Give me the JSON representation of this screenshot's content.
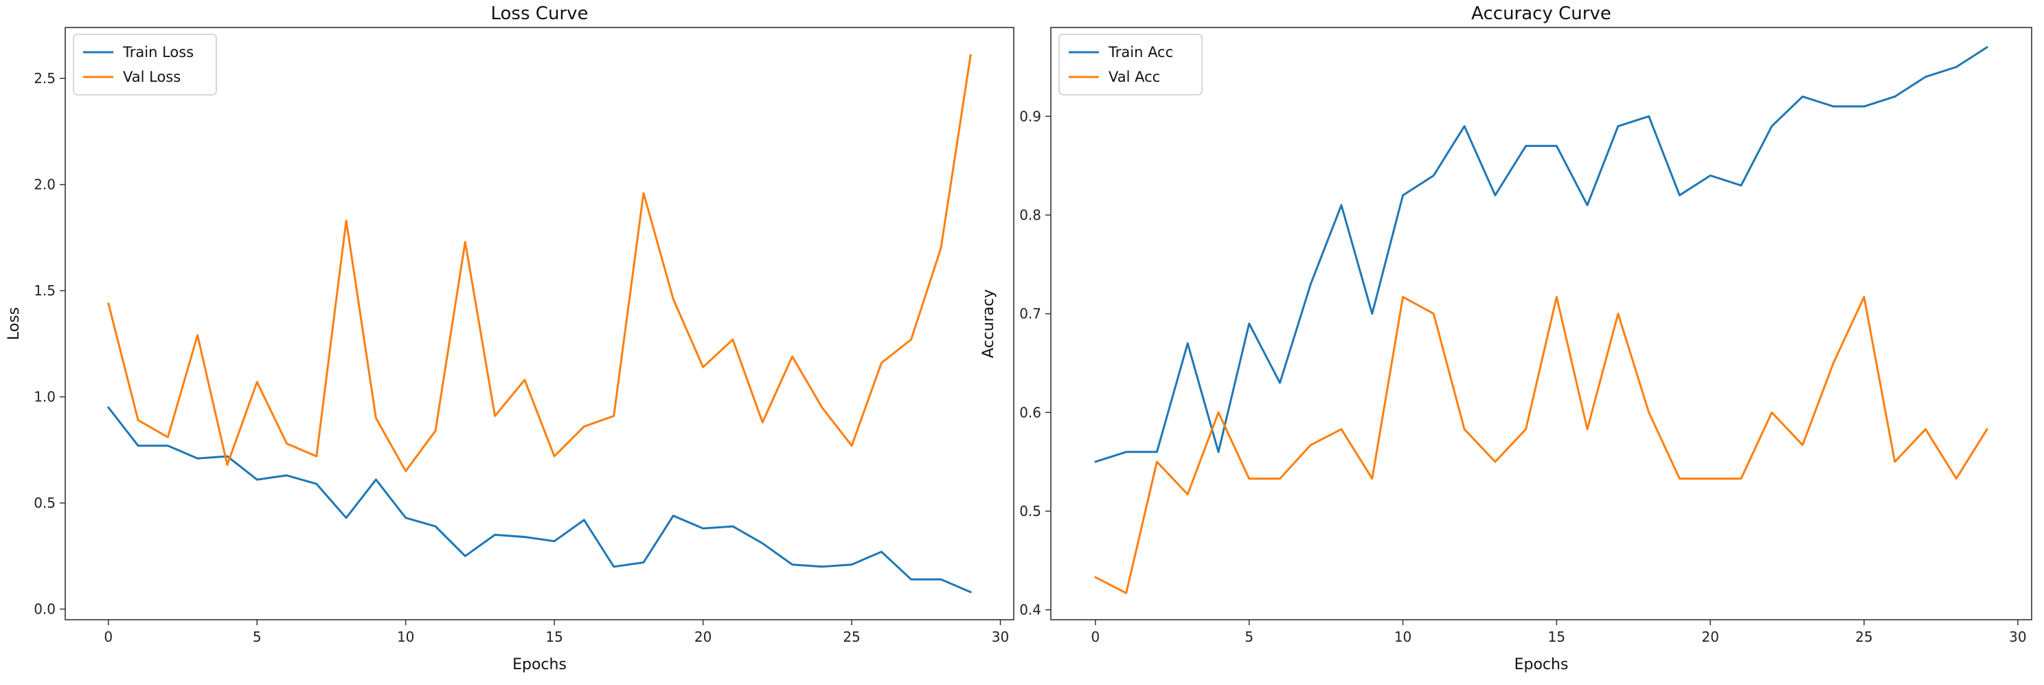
{
  "chart_data": [
    {
      "type": "line",
      "title": "Loss Curve",
      "xlabel": "Epochs",
      "ylabel": "Loss",
      "xlim": [
        -1.45,
        30.45
      ],
      "ylim": [
        -0.05,
        2.74
      ],
      "xticks": [
        "0",
        "5",
        "10",
        "15",
        "20",
        "25",
        "30"
      ],
      "xtick_values": [
        0,
        5,
        10,
        15,
        20,
        25,
        30
      ],
      "yticks": [
        "0.0",
        "0.5",
        "1.0",
        "1.5",
        "2.0",
        "2.5"
      ],
      "ytick_values": [
        0.0,
        0.5,
        1.0,
        1.5,
        2.0,
        2.5
      ],
      "grid": false,
      "legend_position": "top-left",
      "x": [
        0,
        1,
        2,
        3,
        4,
        5,
        6,
        7,
        8,
        9,
        10,
        11,
        12,
        13,
        14,
        15,
        16,
        17,
        18,
        19,
        20,
        21,
        22,
        23,
        24,
        25,
        26,
        27,
        28,
        29
      ],
      "series": [
        {
          "name": "Train Loss",
          "color": "#1f77b4",
          "values": [
            0.95,
            0.77,
            0.77,
            0.71,
            0.72,
            0.61,
            0.63,
            0.59,
            0.43,
            0.61,
            0.43,
            0.39,
            0.25,
            0.35,
            0.34,
            0.32,
            0.42,
            0.2,
            0.22,
            0.44,
            0.38,
            0.39,
            0.31,
            0.21,
            0.2,
            0.21,
            0.27,
            0.14,
            0.14,
            0.08
          ]
        },
        {
          "name": "Val Loss",
          "color": "#ff7f0e",
          "values": [
            1.44,
            0.89,
            0.81,
            1.29,
            0.68,
            1.07,
            0.78,
            0.72,
            1.83,
            0.9,
            0.65,
            0.84,
            1.73,
            0.91,
            1.08,
            0.72,
            0.86,
            0.91,
            1.96,
            1.46,
            1.14,
            1.27,
            0.88,
            1.19,
            0.95,
            0.77,
            1.16,
            1.27,
            1.7,
            2.61
          ]
        }
      ]
    },
    {
      "type": "line",
      "title": "Accuracy Curve",
      "xlabel": "Epochs",
      "ylabel": "Accuracy",
      "xlim": [
        -1.45,
        30.45
      ],
      "ylim": [
        0.39,
        0.99
      ],
      "xticks": [
        "0",
        "5",
        "10",
        "15",
        "20",
        "25",
        "30"
      ],
      "xtick_values": [
        0,
        5,
        10,
        15,
        20,
        25,
        30
      ],
      "yticks": [
        "0.4",
        "0.5",
        "0.6",
        "0.7",
        "0.8",
        "0.9"
      ],
      "ytick_values": [
        0.4,
        0.5,
        0.6,
        0.7,
        0.8,
        0.9
      ],
      "grid": false,
      "legend_position": "top-left",
      "x": [
        0,
        1,
        2,
        3,
        4,
        5,
        6,
        7,
        8,
        9,
        10,
        11,
        12,
        13,
        14,
        15,
        16,
        17,
        18,
        19,
        20,
        21,
        22,
        23,
        24,
        25,
        26,
        27,
        28,
        29
      ],
      "series": [
        {
          "name": "Train Acc",
          "color": "#1f77b4",
          "values": [
            0.55,
            0.56,
            0.56,
            0.67,
            0.56,
            0.69,
            0.63,
            0.73,
            0.81,
            0.7,
            0.82,
            0.84,
            0.89,
            0.82,
            0.87,
            0.87,
            0.81,
            0.89,
            0.9,
            0.82,
            0.84,
            0.83,
            0.89,
            0.92,
            0.91,
            0.91,
            0.92,
            0.94,
            0.95,
            0.97
          ]
        },
        {
          "name": "Val Acc",
          "color": "#ff7f0e",
          "values": [
            0.433,
            0.417,
            0.55,
            0.517,
            0.6,
            0.533,
            0.533,
            0.567,
            0.583,
            0.533,
            0.717,
            0.7,
            0.583,
            0.55,
            0.583,
            0.717,
            0.583,
            0.7,
            0.6,
            0.533,
            0.533,
            0.533,
            0.6,
            0.567,
            0.65,
            0.717,
            0.55,
            0.583,
            0.533,
            0.583
          ]
        }
      ]
    }
  ]
}
